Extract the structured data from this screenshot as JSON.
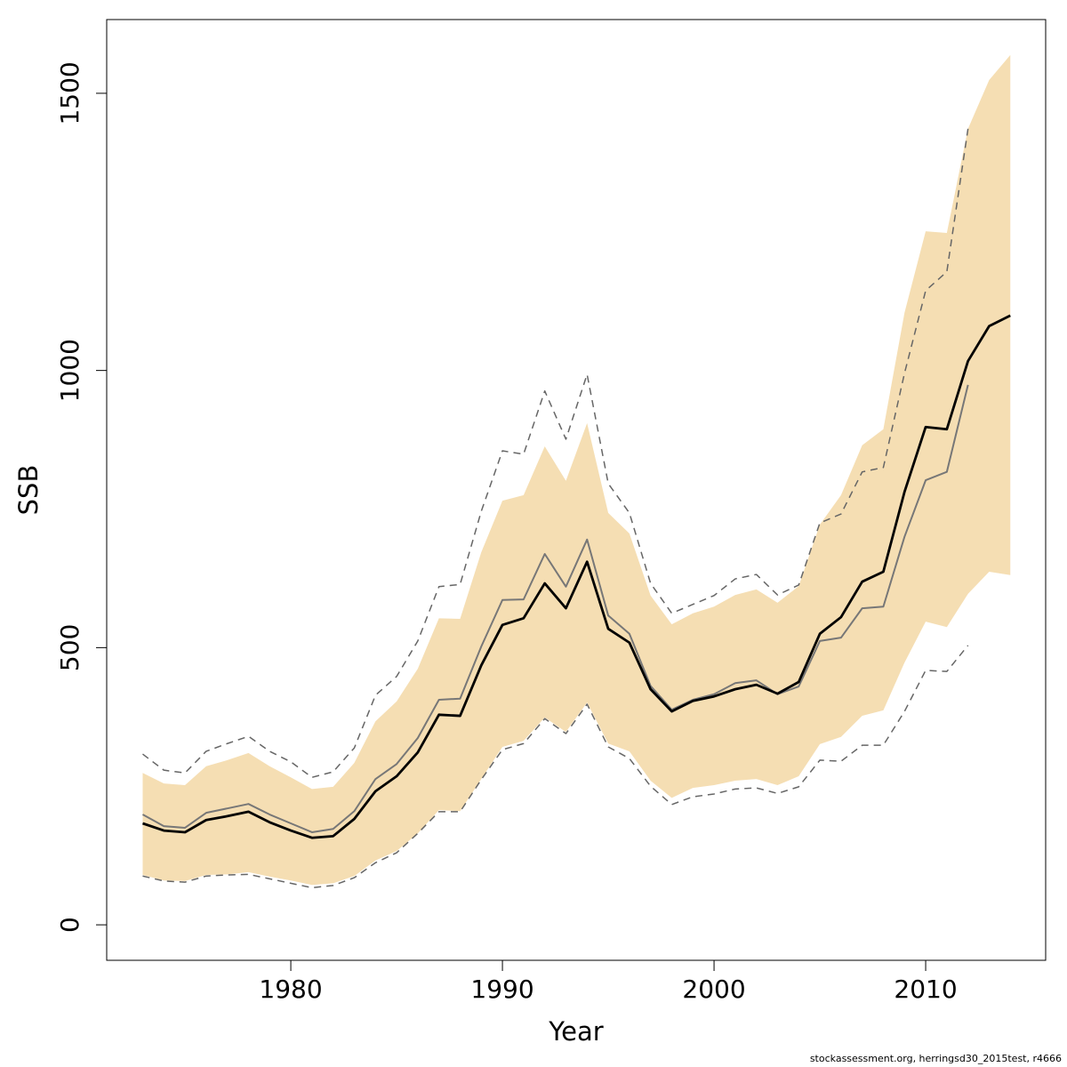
{
  "chart_data": {
    "type": "line",
    "xlabel": "Year",
    "ylabel": "SSB",
    "footer": "stockassessment.org, herringsd30_2015test, r4666",
    "xlim": [
      1971.3,
      2015.67
    ],
    "ylim": [
      -64,
      1633
    ],
    "xticks": [
      1980,
      1990,
      2000,
      2010
    ],
    "yticks": [
      0,
      500,
      1000,
      1500
    ],
    "x": [
      1973,
      1974,
      1975,
      1976,
      1977,
      1978,
      1979,
      1980,
      1981,
      1982,
      1983,
      1984,
      1985,
      1986,
      1987,
      1988,
      1989,
      1990,
      1991,
      1992,
      1993,
      1994,
      1995,
      1996,
      1997,
      1998,
      1999,
      2000,
      2001,
      2002,
      2003,
      2004,
      2005,
      2006,
      2007,
      2008,
      2009,
      2010,
      2011,
      2012,
      2013,
      2014
    ],
    "band": {
      "color": "#f5deb3",
      "upper": [
        274,
        255,
        252,
        286,
        297,
        310,
        286,
        266,
        245,
        249,
        292,
        367,
        403,
        462,
        553,
        552,
        672,
        765,
        775,
        863,
        801,
        905,
        743,
        706,
        594,
        542,
        562,
        574,
        595,
        605,
        581,
        611,
        722,
        775,
        865,
        894,
        1104,
        1251,
        1248,
        1436,
        1524,
        1569
      ],
      "lower": [
        90,
        80,
        79,
        90,
        91,
        95,
        87,
        80,
        72,
        75,
        88,
        116,
        133,
        165,
        207,
        205,
        263,
        321,
        332,
        374,
        348,
        401,
        327,
        313,
        260,
        229,
        247,
        252,
        260,
        263,
        252,
        268,
        326,
        339,
        377,
        387,
        473,
        547,
        537,
        597,
        637,
        631
      ]
    },
    "series": [
      {
        "color": "#666666",
        "linestyle": "dashed",
        "linewidth": 1.5,
        "values": [
          308,
          279,
          274,
          313,
          327,
          340,
          313,
          294,
          266,
          276,
          319,
          414,
          448,
          512,
          610,
          614,
          746,
          855,
          849,
          963,
          876,
          993,
          796,
          743,
          616,
          562,
          578,
          594,
          624,
          632,
          595,
          613,
          725,
          741,
          817,
          825,
          995,
          1144,
          1178,
          1436,
          null,
          null
        ]
      },
      {
        "color": "#666666",
        "linestyle": "dashed",
        "linewidth": 1.5,
        "values": [
          88,
          79,
          77,
          88,
          90,
          91,
          83,
          75,
          67,
          71,
          85,
          112,
          130,
          165,
          204,
          204,
          262,
          316,
          327,
          372,
          345,
          398,
          321,
          300,
          250,
          217,
          231,
          236,
          245,
          247,
          237,
          249,
          297,
          295,
          324,
          324,
          385,
          459,
          457,
          504,
          null,
          null
        ]
      },
      {
        "color": "#777777",
        "linestyle": "solid",
        "linewidth": 2,
        "values": [
          199,
          178,
          175,
          202,
          210,
          218,
          199,
          183,
          167,
          173,
          205,
          263,
          290,
          337,
          406,
          408,
          502,
          586,
          587,
          669,
          610,
          695,
          558,
          525,
          431,
          388,
          406,
          416,
          436,
          441,
          416,
          430,
          512,
          518,
          571,
          574,
          700,
          802,
          817,
          974,
          null,
          null
        ]
      },
      {
        "color": "#000000",
        "linestyle": "solid",
        "linewidth": 2.8,
        "values": [
          183,
          170,
          167,
          189,
          196,
          204,
          185,
          170,
          157,
          160,
          191,
          241,
          268,
          311,
          379,
          377,
          468,
          541,
          553,
          616,
          571,
          655,
          534,
          509,
          425,
          385,
          404,
          412,
          425,
          433,
          417,
          438,
          525,
          555,
          619,
          637,
          781,
          898,
          894,
          1017,
          1080,
          1099
        ]
      }
    ]
  }
}
